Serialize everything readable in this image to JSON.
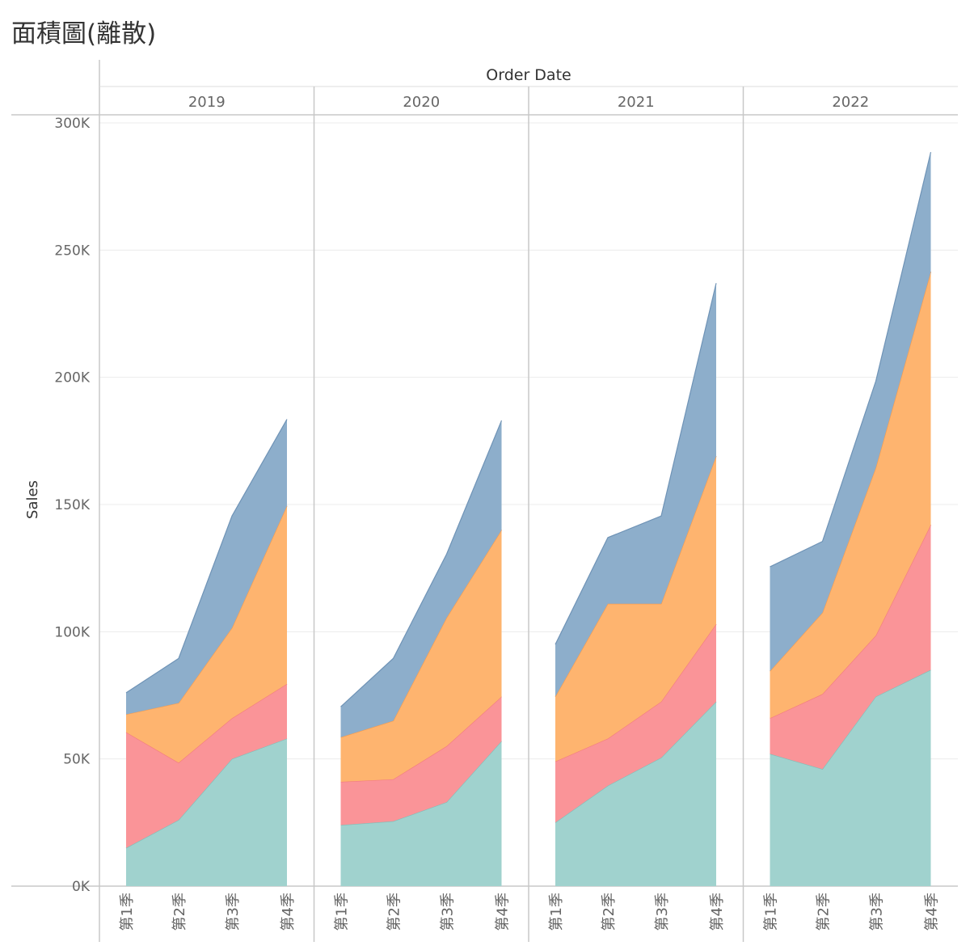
{
  "page": {
    "title": "面積圖(離散)"
  },
  "chart_data": {
    "type": "area",
    "stacked": true,
    "column_header_label": "Order Date",
    "ylabel": "Sales",
    "ylim": [
      0,
      300000
    ],
    "y_ticks": [
      0,
      50000,
      100000,
      150000,
      200000,
      250000,
      300000
    ],
    "y_tick_labels": [
      "0K",
      "50K",
      "100K",
      "150K",
      "200K",
      "250K",
      "300K"
    ],
    "grid": true,
    "x_tick_labels": [
      "第1季",
      "第2季",
      "第3季",
      "第4季"
    ],
    "layer_colors": [
      "#a0d2ce",
      "#fa9498",
      "#feb46f",
      "#8daecb"
    ],
    "layer_stroke_colors": [
      "#7fbfb9",
      "#f27a80",
      "#f99a4a",
      "#6f93b6"
    ],
    "panels": [
      {
        "year": "2019",
        "cumulative": [
          [
            15000,
            26000,
            50000,
            58000
          ],
          [
            60500,
            48500,
            66000,
            79500
          ],
          [
            67500,
            72000,
            101500,
            149500
          ],
          [
            76000,
            89500,
            145500,
            183500
          ]
        ]
      },
      {
        "year": "2020",
        "cumulative": [
          [
            24000,
            25500,
            33000,
            57000
          ],
          [
            41000,
            42000,
            55000,
            74500
          ],
          [
            58500,
            65000,
            105500,
            140000
          ],
          [
            70500,
            89500,
            130500,
            183000
          ]
        ]
      },
      {
        "year": "2021",
        "cumulative": [
          [
            25000,
            39500,
            50500,
            72500
          ],
          [
            49000,
            58000,
            72500,
            103000
          ],
          [
            74500,
            111000,
            111000,
            169000
          ],
          [
            95000,
            137000,
            145500,
            237000
          ]
        ]
      },
      {
        "year": "2022",
        "cumulative": [
          [
            52000,
            46000,
            74500,
            85000
          ],
          [
            66000,
            75500,
            98500,
            142000
          ],
          [
            84500,
            107500,
            164500,
            241500
          ],
          [
            125500,
            135500,
            198500,
            288500
          ]
        ]
      }
    ]
  }
}
